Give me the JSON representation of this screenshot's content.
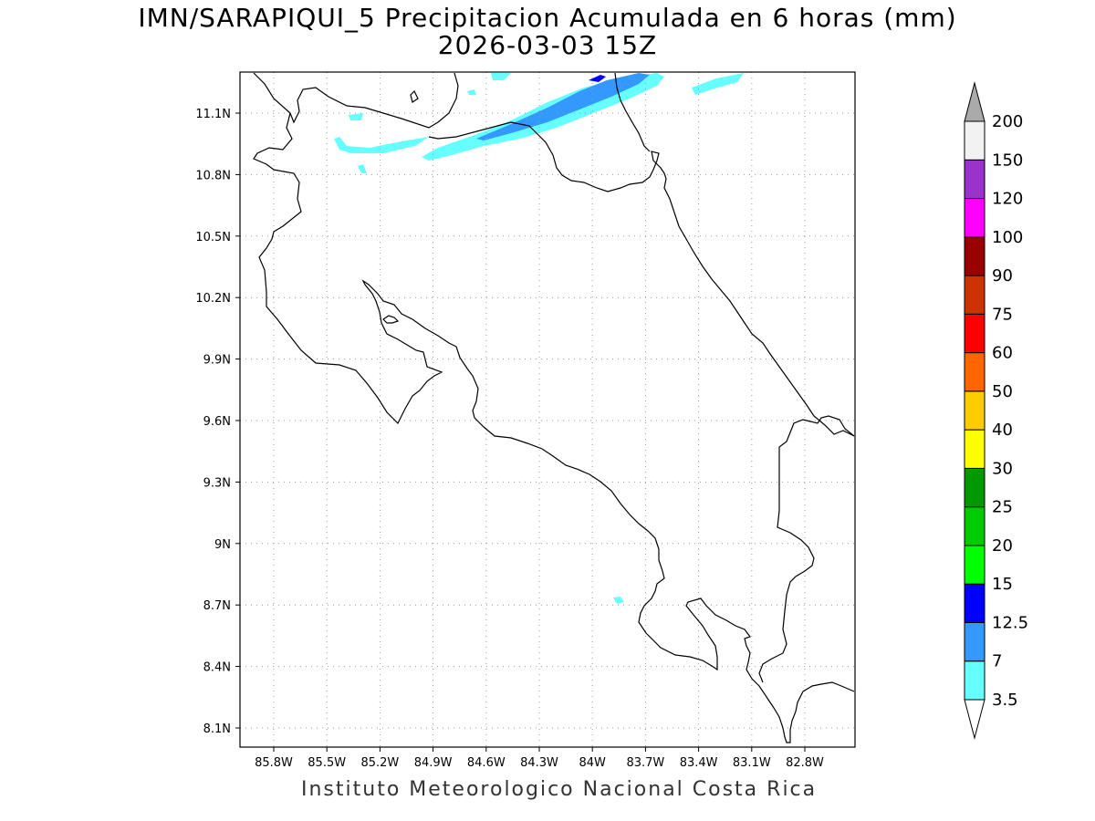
{
  "title": {
    "line1": "IMN/SARAPIQUI_5 Precipitacion Acumulada en 6 horas (mm)",
    "line2": "2026-03-03 15Z"
  },
  "footer": "Instituto Meteorologico Nacional Costa Rica",
  "map": {
    "lat_labels": [
      "11.1N",
      "10.8N",
      "10.5N",
      "10.2N",
      "9.9N",
      "9.6N",
      "9.3N",
      "9N",
      "8.7N",
      "8.4N",
      "8.1N"
    ],
    "lon_labels": [
      "85.8W",
      "85.5W",
      "85.2W",
      "84.9W",
      "84.6W",
      "84.3W",
      "84W",
      "83.7W",
      "83.4W",
      "83.1W",
      "82.8W"
    ],
    "gridlines": true,
    "coastline_color": "#000000"
  },
  "colorbar": {
    "levels": [
      "3.5",
      "7",
      "12.5",
      "15",
      "20",
      "25",
      "30",
      "40",
      "50",
      "60",
      "75",
      "90",
      "100",
      "120",
      "150",
      "200"
    ],
    "colors": [
      "#66ffff",
      "#3399ff",
      "#0000ff",
      "#00ff00",
      "#00cc00",
      "#009900",
      "#ffff00",
      "#ffcc00",
      "#ff6600",
      "#ff0000",
      "#cc3300",
      "#990000",
      "#ff00ff",
      "#9933cc",
      "#f2f2f2",
      "#aaaaaa"
    ],
    "colors_ordered_bottom_to_top": true
  },
  "precip_colors": {
    "light": "#66ffff",
    "medium": "#3399ff",
    "heavy": "#0000ff"
  }
}
